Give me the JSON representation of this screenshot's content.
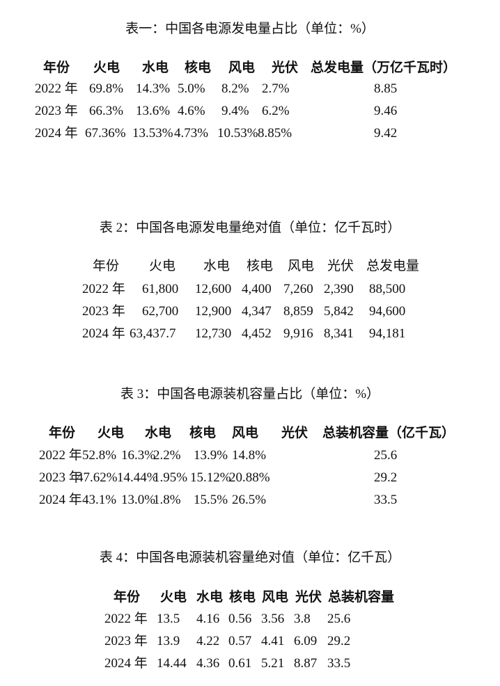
{
  "tables": [
    {
      "title": "表一：中国各电源发电量占比（单位：%）",
      "headers": [
        "年份",
        "火电",
        "水电",
        "核电",
        "风电",
        "光伏",
        "总发电量（万亿千瓦时）"
      ],
      "rows": [
        [
          "2022 年",
          "69.8%",
          "14.3%",
          "5.0%",
          "8.2%",
          "2.7%",
          "8.85"
        ],
        [
          "2023 年",
          "66.3%",
          "13.6%",
          "4.6%",
          "9.4%",
          "6.2%",
          "9.46"
        ],
        [
          "2024 年",
          "67.36%",
          "13.53%",
          "4.73%",
          "10.53%",
          "8.85%",
          "9.42"
        ]
      ]
    },
    {
      "title": "表 2：中国各电源发电量绝对值（单位：亿千瓦时）",
      "headers": [
        "年份",
        "火电",
        "水电",
        "核电",
        "风电",
        "光伏",
        "总发电量"
      ],
      "rows": [
        [
          "2022 年",
          "61,800",
          "12,600",
          "4,400",
          "7,260",
          "2,390",
          "88,500"
        ],
        [
          "2023 年",
          "62,700",
          "12,900",
          "4,347",
          "8,859",
          "5,842",
          "94,600"
        ],
        [
          "2024 年",
          "63,437.7",
          "12,730",
          "4,452",
          "9,916",
          "8,341",
          "94,181"
        ]
      ]
    },
    {
      "title": "表 3：中国各电源装机容量占比（单位：%）",
      "headers": [
        "年份",
        "火电",
        "水电",
        "核电",
        "风电",
        "光伏",
        "总装机容量（亿千瓦）"
      ],
      "rows": [
        [
          "2022 年",
          "52.8%",
          "16.3%",
          "2.2%",
          "13.9%",
          "14.8%",
          "25.6"
        ],
        [
          "2023 年",
          "47.62%",
          "14.44%",
          "1.95%",
          "15.12%",
          "20.88%",
          "29.2"
        ],
        [
          "2024 年",
          "43.1%",
          "13.0%",
          "1.8%",
          "15.5%",
          "26.5%",
          "33.5"
        ]
      ]
    },
    {
      "title": "表 4：中国各电源装机容量绝对值（单位：亿千瓦）",
      "headers": [
        "年份",
        "火电",
        "水电",
        "核电",
        "风电",
        "光伏",
        "总装机容量"
      ],
      "rows": [
        [
          "2022 年",
          "13.5",
          "4.16",
          "0.56",
          "3.56",
          "3.8",
          "25.6"
        ],
        [
          "2023 年",
          "13.9",
          "4.22",
          "0.57",
          "4.41",
          "6.09",
          "29.2"
        ],
        [
          "2024 年",
          "14.44",
          "4.36",
          "0.61",
          "5.21",
          "8.87",
          "33.5"
        ]
      ]
    }
  ]
}
